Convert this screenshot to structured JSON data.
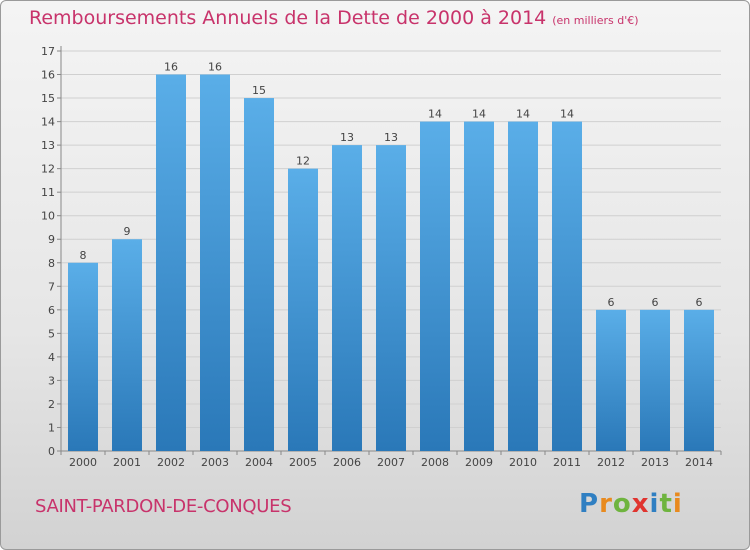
{
  "header": {
    "title": "Remboursements Annuels de la Dette de 2000 à 2014",
    "unit_note": "(en milliers d'€)"
  },
  "footer": {
    "commune": "SAINT-PARDON-DE-CONQUES",
    "logo": "Proxiti"
  },
  "colors": {
    "title": "#c8336b",
    "bar_top": "#5aaee8",
    "bar_bottom": "#2a78b8",
    "grid": "#d0d0d0"
  },
  "chart_data": {
    "type": "bar",
    "categories": [
      "2000",
      "2001",
      "2002",
      "2003",
      "2004",
      "2005",
      "2006",
      "2007",
      "2008",
      "2009",
      "2010",
      "2011",
      "2012",
      "2013",
      "2014"
    ],
    "values": [
      8,
      9,
      16,
      16,
      15,
      12,
      13,
      13,
      14,
      14,
      14,
      14,
      6,
      6,
      6
    ],
    "y_ticks": [
      0,
      1,
      2,
      3,
      4,
      5,
      6,
      7,
      8,
      9,
      10,
      11,
      12,
      13,
      14,
      15,
      16,
      17
    ],
    "ylim": [
      0,
      17
    ],
    "grid": true,
    "legend": "none"
  }
}
